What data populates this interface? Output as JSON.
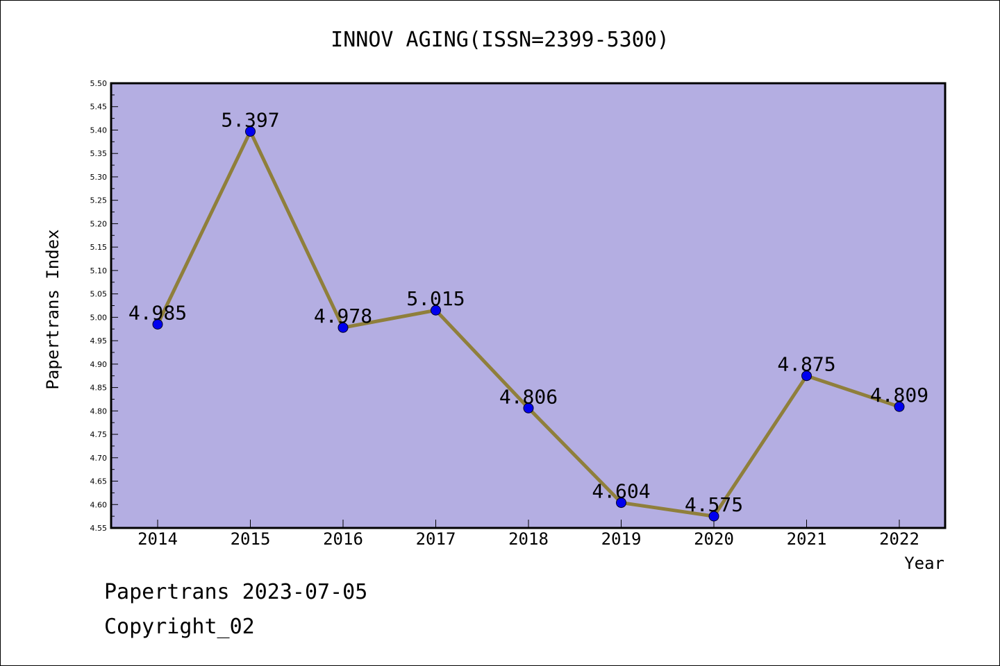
{
  "chart_data": {
    "type": "line",
    "title": "INNOV AGING(ISSN=2399-5300)",
    "xlabel": "Year",
    "ylabel": "Papertrans Index",
    "categories": [
      "2014",
      "2015",
      "2016",
      "2017",
      "2018",
      "2019",
      "2020",
      "2021",
      "2022"
    ],
    "values": [
      4.985,
      5.397,
      4.978,
      5.015,
      4.806,
      4.604,
      4.575,
      4.875,
      4.809
    ],
    "value_labels": [
      "4.985",
      "5.397",
      "4.978",
      "5.015",
      "4.806",
      "4.604",
      "4.575",
      "4.875",
      "4.809"
    ],
    "ylim": [
      4.55,
      5.5
    ],
    "yticks": [
      "4.55",
      "4.60",
      "4.65",
      "4.70",
      "4.75",
      "4.80",
      "4.85",
      "4.90",
      "4.95",
      "5.00",
      "5.05",
      "5.10",
      "5.15",
      "5.20",
      "5.25",
      "5.30",
      "5.35",
      "5.40",
      "5.45",
      "5.50"
    ],
    "grid": false,
    "colors": {
      "plot_background": "#b4aee2",
      "line": "#8f7f3b",
      "marker": "#0000ee",
      "frame": "#000000"
    }
  },
  "footer": {
    "line1": "Papertrans 2023-07-05",
    "line2": "Copyright_02"
  }
}
